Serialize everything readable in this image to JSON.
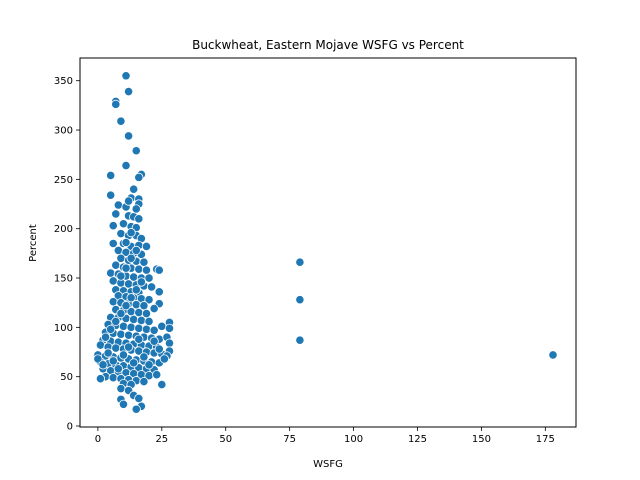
{
  "chart_data": {
    "type": "scatter",
    "title": "Buckwheat, Eastern Mojave WSFG vs Percent",
    "xlabel": "WSFG",
    "ylabel": "Percent",
    "xlim": [
      -7,
      187
    ],
    "ylim": [
      -1,
      373
    ],
    "xticks": [
      0,
      25,
      50,
      75,
      100,
      125,
      150,
      175
    ],
    "yticks": [
      0,
      50,
      100,
      150,
      200,
      250,
      300,
      350
    ],
    "grid": false,
    "marker_color": "#1f77b4",
    "marker_edge": "#ffffff",
    "points": [
      [
        11,
        355
      ],
      [
        12,
        339
      ],
      [
        7,
        329
      ],
      [
        7,
        326
      ],
      [
        9,
        309
      ],
      [
        12,
        294
      ],
      [
        15,
        279
      ],
      [
        11,
        264
      ],
      [
        17,
        255
      ],
      [
        5,
        254
      ],
      [
        16,
        252
      ],
      [
        14,
        240
      ],
      [
        5,
        234
      ],
      [
        13,
        231
      ],
      [
        16,
        230
      ],
      [
        8,
        224
      ],
      [
        11,
        222
      ],
      [
        16,
        225
      ],
      [
        7,
        215
      ],
      [
        12,
        213
      ],
      [
        14,
        212
      ],
      [
        16,
        210
      ],
      [
        10,
        205
      ],
      [
        6,
        203
      ],
      [
        13,
        202
      ],
      [
        15,
        201
      ],
      [
        9,
        195
      ],
      [
        12,
        193
      ],
      [
        15,
        193
      ],
      [
        17,
        190
      ],
      [
        6,
        185
      ],
      [
        10,
        185
      ],
      [
        13,
        182
      ],
      [
        16,
        183
      ],
      [
        19,
        182
      ],
      [
        8,
        178
      ],
      [
        11,
        176
      ],
      [
        14,
        175
      ],
      [
        17,
        174
      ],
      [
        9,
        170
      ],
      [
        12,
        168
      ],
      [
        15,
        167
      ],
      [
        18,
        166
      ],
      [
        7,
        163
      ],
      [
        10,
        161
      ],
      [
        13,
        160
      ],
      [
        16,
        159
      ],
      [
        19,
        158
      ],
      [
        23,
        159
      ],
      [
        24,
        158
      ],
      [
        5,
        155
      ],
      [
        8,
        154
      ],
      [
        11,
        152
      ],
      [
        14,
        151
      ],
      [
        17,
        150
      ],
      [
        20,
        150
      ],
      [
        6,
        147
      ],
      [
        9,
        145
      ],
      [
        12,
        144
      ],
      [
        15,
        143
      ],
      [
        18,
        142
      ],
      [
        21,
        141
      ],
      [
        7,
        138
      ],
      [
        10,
        137
      ],
      [
        13,
        136
      ],
      [
        16,
        135
      ],
      [
        24,
        136
      ],
      [
        8,
        132
      ],
      [
        11,
        131
      ],
      [
        14,
        130
      ],
      [
        17,
        129
      ],
      [
        20,
        128
      ],
      [
        6,
        126
      ],
      [
        9,
        125
      ],
      [
        12,
        124
      ],
      [
        15,
        123
      ],
      [
        18,
        122
      ],
      [
        24,
        124
      ],
      [
        22,
        119
      ],
      [
        7,
        118
      ],
      [
        10,
        117
      ],
      [
        13,
        116
      ],
      [
        16,
        115
      ],
      [
        19,
        114
      ],
      [
        5,
        110
      ],
      [
        8,
        110
      ],
      [
        11,
        109
      ],
      [
        14,
        108
      ],
      [
        17,
        107
      ],
      [
        20,
        106
      ],
      [
        28,
        105
      ],
      [
        4,
        103
      ],
      [
        7,
        102
      ],
      [
        10,
        101
      ],
      [
        13,
        100
      ],
      [
        16,
        99
      ],
      [
        19,
        98
      ],
      [
        22,
        97
      ],
      [
        25,
        101
      ],
      [
        28,
        99
      ],
      [
        3,
        95
      ],
      [
        6,
        94
      ],
      [
        9,
        93
      ],
      [
        12,
        92
      ],
      [
        15,
        91
      ],
      [
        18,
        90
      ],
      [
        21,
        89
      ],
      [
        24,
        88
      ],
      [
        27,
        90
      ],
      [
        2,
        87
      ],
      [
        5,
        86
      ],
      [
        8,
        85
      ],
      [
        11,
        84
      ],
      [
        14,
        83
      ],
      [
        17,
        82
      ],
      [
        20,
        81
      ],
      [
        23,
        80
      ],
      [
        28,
        84
      ],
      [
        1,
        82
      ],
      [
        4,
        80
      ],
      [
        7,
        79
      ],
      [
        10,
        78
      ],
      [
        13,
        77
      ],
      [
        16,
        76
      ],
      [
        19,
        75
      ],
      [
        22,
        74
      ],
      [
        25,
        73
      ],
      [
        28,
        76
      ],
      [
        0,
        72
      ],
      [
        3,
        71
      ],
      [
        6,
        70
      ],
      [
        9,
        69
      ],
      [
        12,
        68
      ],
      [
        15,
        67
      ],
      [
        18,
        66
      ],
      [
        21,
        65
      ],
      [
        24,
        64
      ],
      [
        27,
        71
      ],
      [
        1,
        65
      ],
      [
        4,
        63
      ],
      [
        7,
        62
      ],
      [
        10,
        61
      ],
      [
        13,
        60
      ],
      [
        16,
        59
      ],
      [
        19,
        58
      ],
      [
        22,
        57
      ],
      [
        2,
        58
      ],
      [
        5,
        56
      ],
      [
        8,
        55
      ],
      [
        11,
        54
      ],
      [
        14,
        53
      ],
      [
        17,
        52
      ],
      [
        20,
        51
      ],
      [
        23,
        52
      ],
      [
        3,
        50
      ],
      [
        6,
        49
      ],
      [
        9,
        48
      ],
      [
        12,
        47
      ],
      [
        15,
        46
      ],
      [
        18,
        45
      ],
      [
        1,
        48
      ],
      [
        10,
        43
      ],
      [
        13,
        42
      ],
      [
        25,
        42
      ],
      [
        9,
        38
      ],
      [
        12,
        36
      ],
      [
        14,
        31
      ],
      [
        9,
        27
      ],
      [
        16,
        28
      ],
      [
        10,
        22
      ],
      [
        17,
        20
      ],
      [
        15,
        17
      ],
      [
        0,
        68
      ],
      [
        2,
        62
      ],
      [
        4,
        74
      ],
      [
        6,
        66
      ],
      [
        8,
        58
      ],
      [
        10,
        72
      ],
      [
        12,
        80
      ],
      [
        14,
        64
      ],
      [
        16,
        88
      ],
      [
        18,
        70
      ],
      [
        20,
        62
      ],
      [
        22,
        86
      ],
      [
        24,
        78
      ],
      [
        26,
        68
      ],
      [
        3,
        90
      ],
      [
        5,
        98
      ],
      [
        7,
        106
      ],
      [
        9,
        114
      ],
      [
        11,
        122
      ],
      [
        13,
        130
      ],
      [
        15,
        138
      ],
      [
        17,
        146
      ],
      [
        9,
        152
      ],
      [
        11,
        160
      ],
      [
        13,
        170
      ],
      [
        15,
        178
      ],
      [
        11,
        186
      ],
      [
        13,
        196
      ],
      [
        15,
        220
      ],
      [
        12,
        228
      ],
      [
        79,
        166
      ],
      [
        79,
        128
      ],
      [
        79,
        87
      ],
      [
        178,
        72
      ]
    ]
  }
}
